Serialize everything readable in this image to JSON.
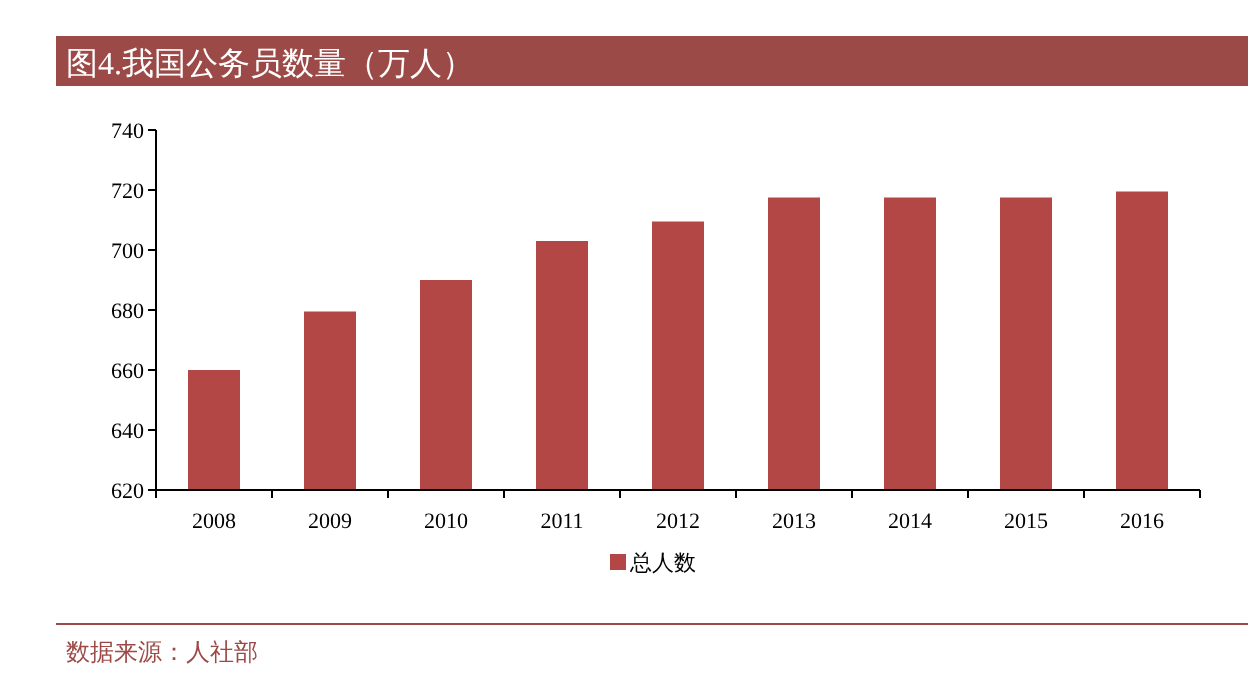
{
  "chart_data": {
    "type": "bar",
    "title": "图4.我国公务员数量（万人）",
    "categories": [
      "2008",
      "2009",
      "2010",
      "2011",
      "2012",
      "2013",
      "2014",
      "2015",
      "2016"
    ],
    "series": [
      {
        "name": "总人数",
        "color": "#b34745",
        "values": [
          660,
          679.5,
          690,
          703,
          709.5,
          717.5,
          717.5,
          717.5,
          719.5
        ]
      }
    ],
    "ylim": [
      620,
      740
    ],
    "yticks": [
      620,
      640,
      660,
      680,
      700,
      720,
      740
    ],
    "legend": "bottom",
    "grid": false,
    "annotations": [
      "数据来源：人社部"
    ]
  }
}
